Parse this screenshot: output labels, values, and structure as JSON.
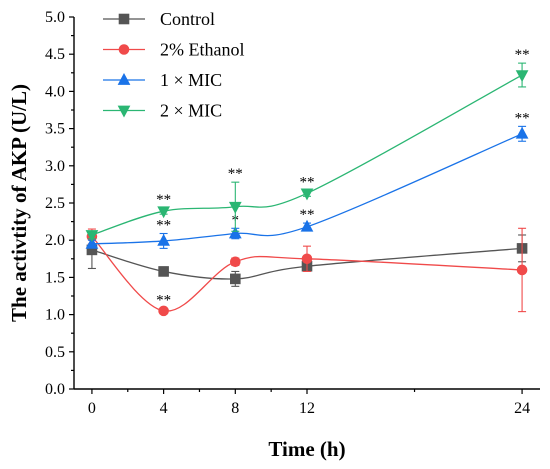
{
  "chart_data": {
    "type": "line",
    "xlabel": "Time (h)",
    "ylabel": "The activtity of AKP (U/L)",
    "x": [
      0,
      4,
      8,
      12,
      24
    ],
    "xticks": [
      0,
      4,
      8,
      12,
      24
    ],
    "xlim": [
      -1,
      25
    ],
    "ylim": [
      0.0,
      5.0
    ],
    "yticks": [
      0.0,
      0.5,
      1.0,
      1.5,
      2.0,
      2.5,
      3.0,
      3.5,
      4.0,
      4.5,
      5.0
    ],
    "ytick_labels": [
      "0.0",
      "0.5",
      "1.0",
      "1.5",
      "2.0",
      "2.5",
      "3.0",
      "3.5",
      "4.0",
      "4.5",
      "5.0"
    ],
    "grid": false,
    "legend_position": "top-left",
    "series": [
      {
        "name": "Control",
        "color": "#555555",
        "marker": "square",
        "values": [
          1.87,
          1.58,
          1.48,
          1.65,
          1.89
        ],
        "errors": [
          0.25,
          0.06,
          0.1,
          0.07,
          0.18
        ],
        "annotations": [
          "",
          "",
          "",
          "",
          ""
        ]
      },
      {
        "name": "2% Ethanol",
        "color": "#f04a4a",
        "marker": "circle",
        "values": [
          2.05,
          1.05,
          1.71,
          1.75,
          1.6
        ],
        "errors": [
          0.1,
          0.03,
          0.05,
          0.17,
          0.56
        ],
        "annotations": [
          "",
          "**",
          "",
          "",
          ""
        ]
      },
      {
        "name": "1 × MIC",
        "color": "#1a73e8",
        "marker": "triangle-up",
        "values": [
          1.95,
          1.99,
          2.09,
          2.18,
          3.43
        ],
        "errors": [
          0.05,
          0.1,
          0.07,
          0.05,
          0.1
        ],
        "annotations": [
          "",
          "**",
          "*",
          "**",
          "**"
        ]
      },
      {
        "name": "2 × MIC",
        "color": "#2bb673",
        "marker": "triangle-down",
        "values": [
          2.07,
          2.39,
          2.45,
          2.63,
          4.22
        ],
        "errors": [
          0.05,
          0.04,
          0.33,
          0.04,
          0.16
        ],
        "annotations": [
          "",
          "**",
          "**",
          "**",
          "**"
        ]
      }
    ]
  }
}
